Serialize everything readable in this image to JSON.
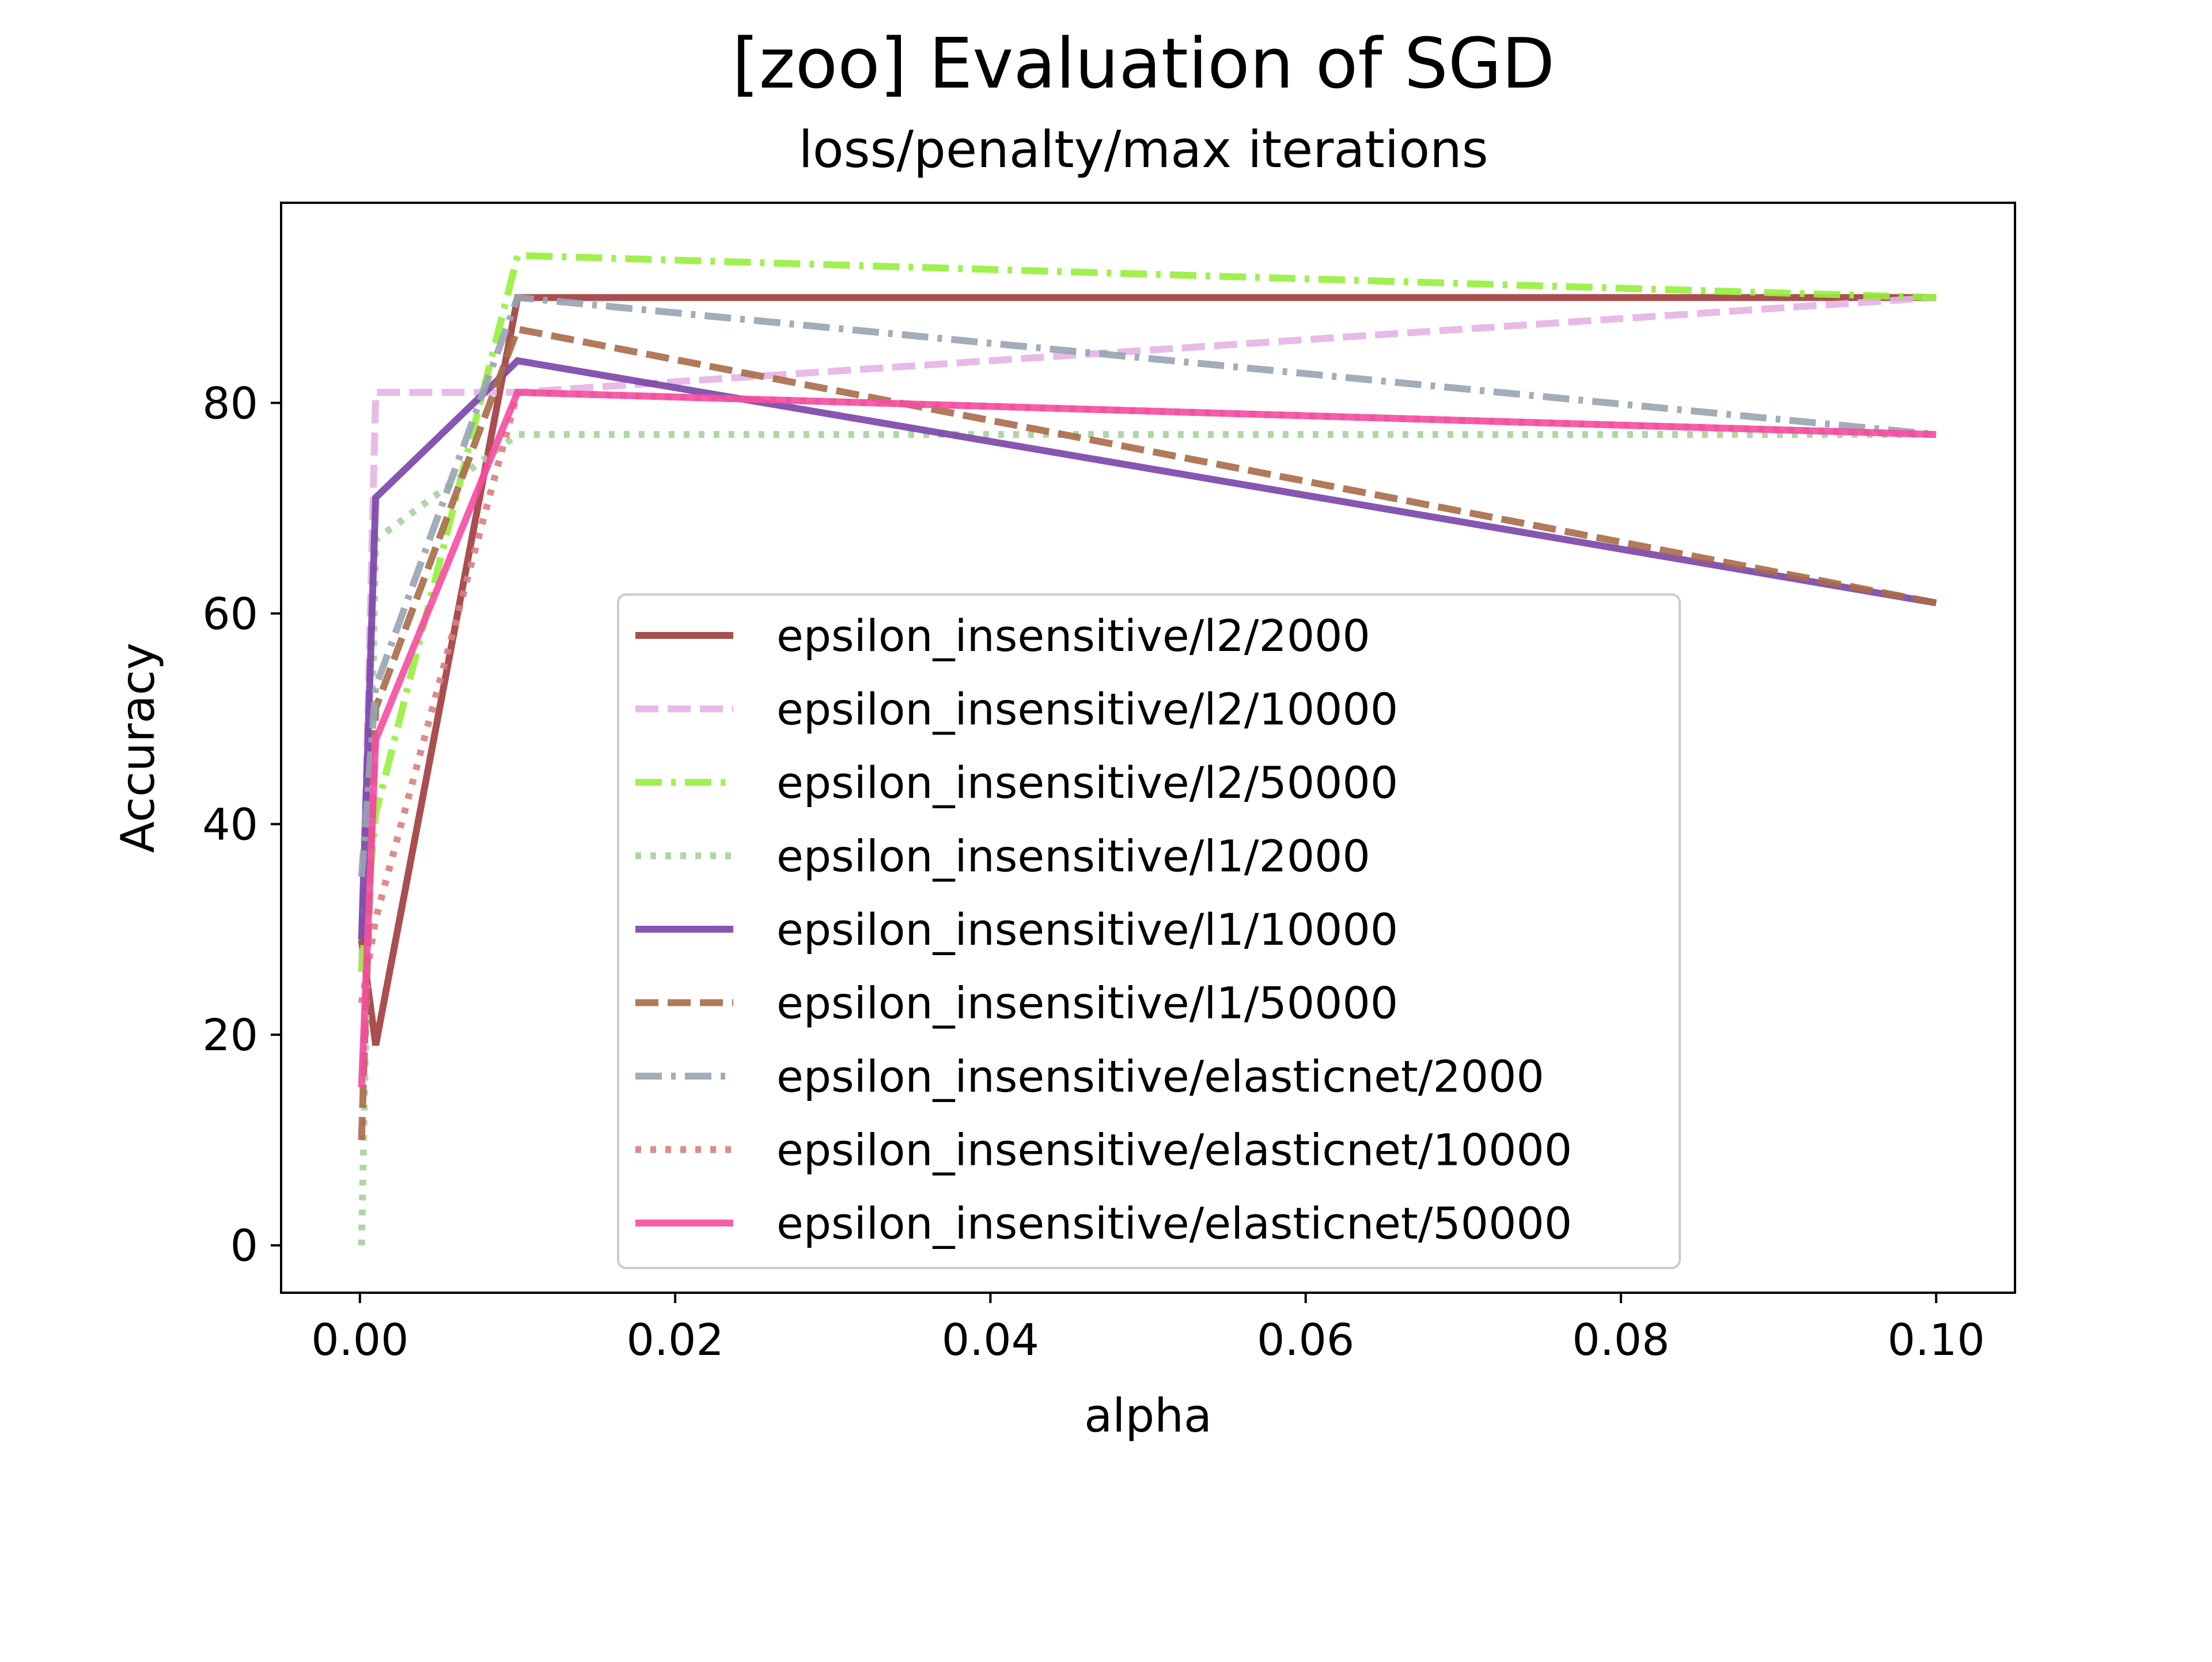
{
  "chart_data": {
    "type": "line",
    "title": "[zoo] Evaluation of SGD",
    "subtitle": "loss/penalty/max iterations",
    "xlabel": "alpha",
    "ylabel": "Accuracy",
    "xlim": [
      -0.005,
      0.105
    ],
    "ylim": [
      -4.5,
      99
    ],
    "xticks": [
      0.0,
      0.02,
      0.04,
      0.06,
      0.08,
      0.1
    ],
    "xtick_labels": [
      "0.00",
      "0.02",
      "0.04",
      "0.06",
      "0.08",
      "0.10"
    ],
    "yticks": [
      0,
      20,
      40,
      60,
      80
    ],
    "ytick_labels": [
      "0",
      "20",
      "40",
      "60",
      "80"
    ],
    "grid": false,
    "legend_position": "center-right",
    "x": [
      0.0001,
      0.001,
      0.01,
      0.1
    ],
    "series": [
      {
        "name": "epsilon_insensitive/l2/2000",
        "values": [
          29,
          19,
          90,
          90
        ],
        "color": "#a13c3c",
        "dash": "solid"
      },
      {
        "name": "epsilon_insensitive/l2/10000",
        "values": [
          26,
          81,
          81,
          90
        ],
        "color": "#e4b2e4",
        "dash": "dashed"
      },
      {
        "name": "epsilon_insensitive/l2/50000",
        "values": [
          26,
          41,
          94,
          90
        ],
        "color": "#96f03c",
        "dash": "dashdot"
      },
      {
        "name": "epsilon_insensitive/l1/2000",
        "values": [
          0,
          67,
          77,
          77
        ],
        "color": "#a8cfa0",
        "dash": "dotted"
      },
      {
        "name": "epsilon_insensitive/l1/10000",
        "values": [
          29,
          71,
          84,
          61
        ],
        "color": "#7a44a8",
        "dash": "solid"
      },
      {
        "name": "epsilon_insensitive/l1/50000",
        "values": [
          10,
          51,
          87,
          61
        ],
        "color": "#a86c48",
        "dash": "dashed"
      },
      {
        "name": "epsilon_insensitive/elasticnet/2000",
        "values": [
          35,
          53,
          90,
          77
        ],
        "color": "#98a4b2",
        "dash": "dashdot"
      },
      {
        "name": "epsilon_insensitive/elasticnet/10000",
        "values": [
          23,
          31,
          81,
          77
        ],
        "color": "#d88080",
        "dash": "dotted"
      },
      {
        "name": "epsilon_insensitive/elasticnet/50000",
        "values": [
          15,
          48,
          81,
          77
        ],
        "color": "#f54ca0",
        "dash": "solid"
      }
    ]
  }
}
